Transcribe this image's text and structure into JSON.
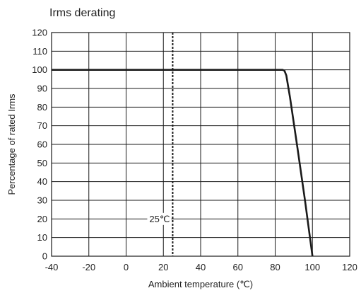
{
  "chart_data": {
    "type": "line",
    "title": "Irms derating",
    "xlabel": "Ambient temperature (℃)",
    "ylabel": "Percentage of rated Irms",
    "xlim": [
      -40,
      120
    ],
    "ylim": [
      0,
      120
    ],
    "x_ticks": [
      "-40",
      "-20",
      "0",
      "20",
      "40",
      "60",
      "80",
      "100",
      "120"
    ],
    "y_ticks": [
      "0",
      "10",
      "20",
      "30",
      "40",
      "50",
      "60",
      "70",
      "80",
      "90",
      "100",
      "110",
      "120"
    ],
    "grid": true,
    "series": [
      {
        "x": [
          -40,
          80,
          84,
          85,
          86,
          88,
          92,
          96,
          100
        ],
        "y": [
          100,
          100,
          100,
          99.5,
          97,
          85,
          58,
          30,
          0
        ],
        "color": "#1a1a1a"
      }
    ],
    "annotations": [
      {
        "x": 25,
        "style": "dashed-vertical",
        "label": "25℃",
        "label_y": 20
      }
    ]
  }
}
